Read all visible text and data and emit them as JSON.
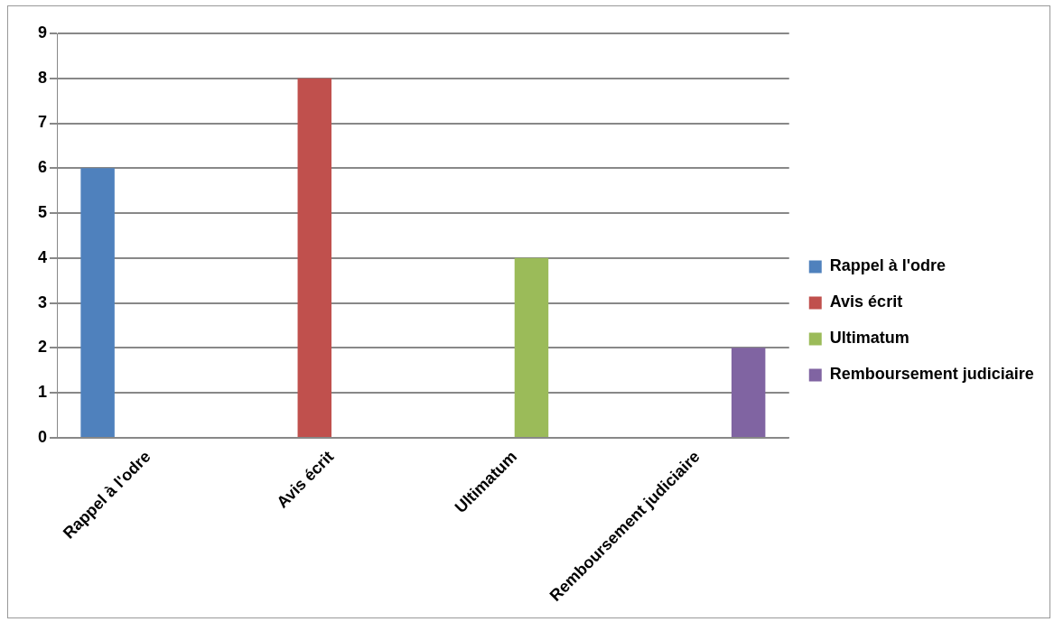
{
  "chart_data": {
    "type": "bar",
    "categories": [
      "Rappel à l'odre",
      "Avis écrit",
      "Ultimatum",
      "Remboursement judiciaire"
    ],
    "series": [
      {
        "name": "Rappel à l'odre",
        "color": "#4f81bd",
        "values": [
          6,
          null,
          null,
          null
        ]
      },
      {
        "name": "Avis écrit",
        "color": "#c0504d",
        "values": [
          null,
          8,
          null,
          null
        ]
      },
      {
        "name": "Ultimatum",
        "color": "#9bbb59",
        "values": [
          null,
          null,
          4,
          null
        ]
      },
      {
        "name": "Remboursement judiciaire",
        "color": "#8064a2",
        "values": [
          null,
          null,
          null,
          2
        ]
      }
    ],
    "ylim": [
      0,
      9
    ],
    "yticks": [
      0,
      1,
      2,
      3,
      4,
      5,
      6,
      7,
      8,
      9
    ],
    "grid": "y",
    "legend": "right"
  }
}
